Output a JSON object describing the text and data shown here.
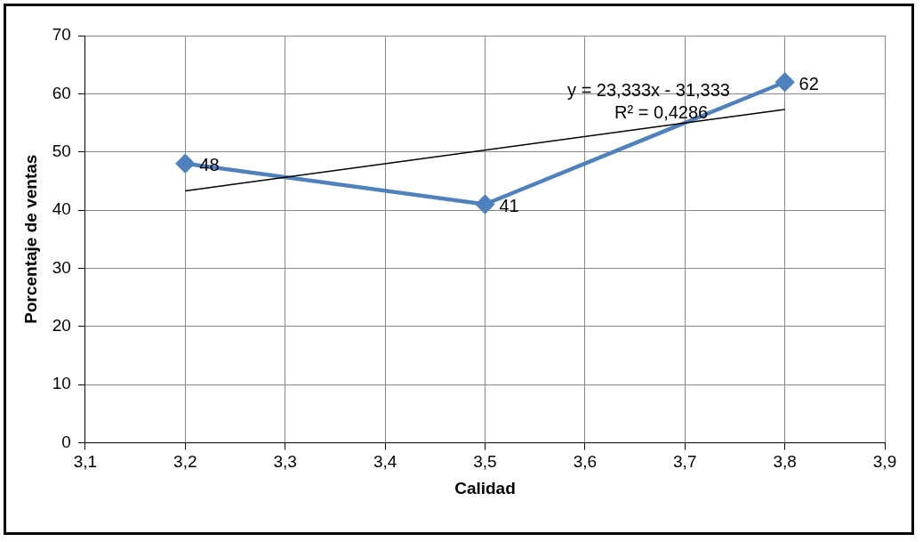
{
  "chart_data": {
    "type": "line",
    "xlabel": "Calidad",
    "ylabel": "Porcentaje de ventas",
    "xlim": [
      3.1,
      3.9
    ],
    "xticks": [
      {
        "value": 3.1,
        "label": "3,1"
      },
      {
        "value": 3.2,
        "label": "3,2"
      },
      {
        "value": 3.3,
        "label": "3,3"
      },
      {
        "value": 3.4,
        "label": "3,4"
      },
      {
        "value": 3.5,
        "label": "3,5"
      },
      {
        "value": 3.6,
        "label": "3,6"
      },
      {
        "value": 3.7,
        "label": "3,7"
      },
      {
        "value": 3.8,
        "label": "3,8"
      },
      {
        "value": 3.9,
        "label": "3,9"
      }
    ],
    "ylim": [
      0,
      70
    ],
    "yticks": [
      0,
      10,
      20,
      30,
      40,
      50,
      60,
      70
    ],
    "series": [
      {
        "color": "#4f81bd",
        "x": [
          3.2,
          3.5,
          3.8
        ],
        "values": [
          48,
          41,
          62
        ],
        "marker": "diamond",
        "data_labels": true
      },
      {
        "type": "line",
        "color": "#000000",
        "x": [
          3.2,
          3.8
        ],
        "values": [
          43.3,
          57.3
        ],
        "marker": "none"
      }
    ],
    "annotations": [
      "y = 23,333x - 31,333",
      "R² = 0,4286"
    ],
    "grid": true,
    "legend": false
  }
}
